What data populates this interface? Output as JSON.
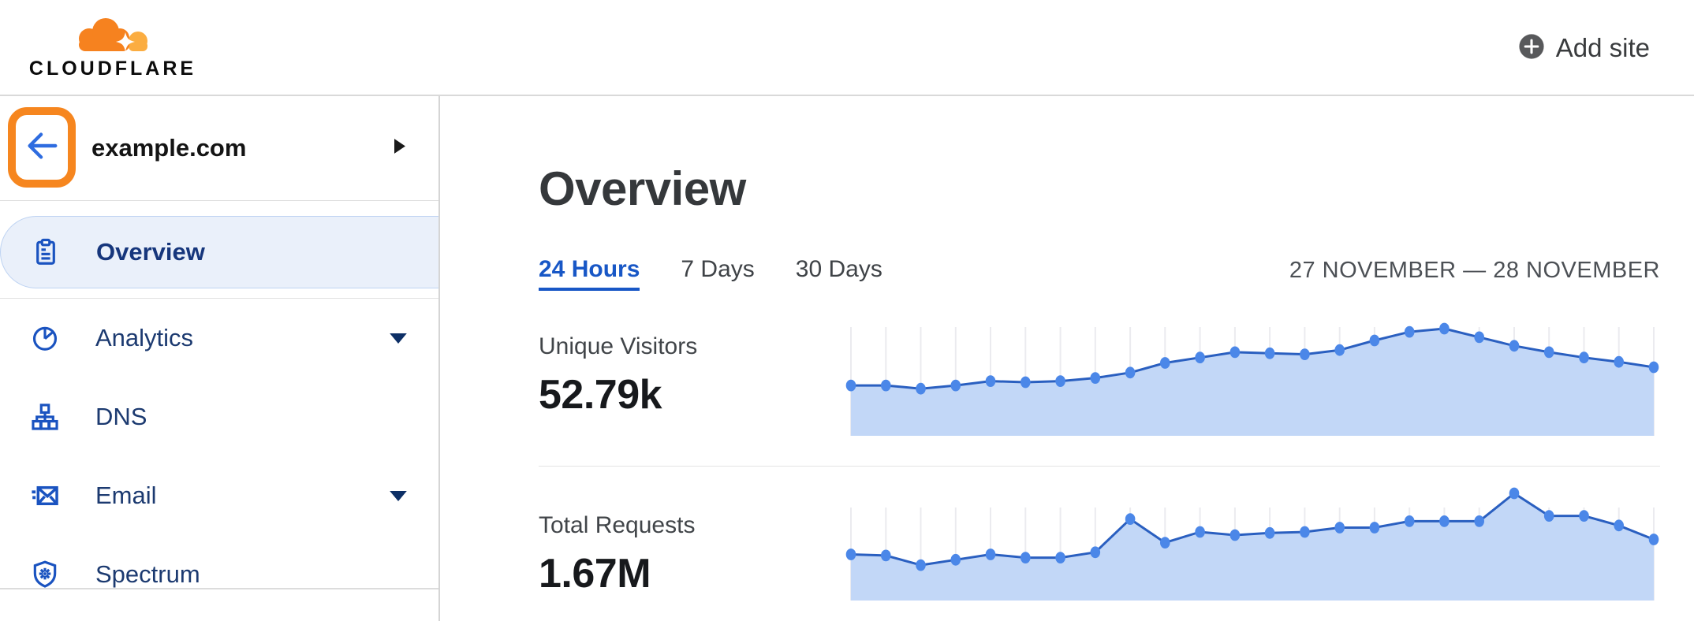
{
  "header": {
    "logo_text": "CLOUDFLARE",
    "add_site_label": "Add site"
  },
  "sidebar": {
    "site_name": "example.com",
    "items": [
      {
        "label": "Overview",
        "icon": "clipboard",
        "selected": true,
        "expandable": false
      },
      {
        "label": "Analytics",
        "icon": "pie-chart",
        "selected": false,
        "expandable": true
      },
      {
        "label": "DNS",
        "icon": "sitemap",
        "selected": false,
        "expandable": false
      },
      {
        "label": "Email",
        "icon": "envelope",
        "selected": false,
        "expandable": true
      },
      {
        "label": "Spectrum",
        "icon": "shield",
        "selected": false,
        "expandable": false
      }
    ]
  },
  "main": {
    "title": "Overview",
    "tabs": [
      {
        "label": "24 Hours",
        "active": true
      },
      {
        "label": "7 Days",
        "active": false
      },
      {
        "label": "30 Days",
        "active": false
      }
    ],
    "date_range": "27 NOVEMBER — 28 NOVEMBER"
  },
  "chart_data": [
    {
      "type": "area",
      "title": "Unique Visitors",
      "total": "52.79k",
      "x": "24 hourly points, 27 Nov – 28 Nov (no axis labels shown)",
      "ylabel": "relative value (y-axis unlabeled, peak = 100)",
      "values": [
        47,
        47,
        44,
        47,
        51,
        50,
        51,
        54,
        59,
        68,
        73,
        78,
        77,
        76,
        80,
        89,
        97,
        100,
        92,
        84,
        78,
        73,
        69,
        64
      ],
      "grid": "vertical gridlines at each point",
      "legend": "none"
    },
    {
      "type": "area",
      "title": "Total Requests",
      "total": "1.67M",
      "x": "24 hourly points, 27 Nov – 28 Nov (no axis labels shown)",
      "ylabel": "relative value (y-axis unlabeled, peak = 100)",
      "values": [
        43,
        42,
        33,
        38,
        43,
        40,
        40,
        45,
        76,
        54,
        64,
        61,
        63,
        64,
        68,
        68,
        74,
        74,
        74,
        100,
        79,
        79,
        70,
        57
      ],
      "grid": "vertical gridlines at each point",
      "legend": "none"
    }
  ],
  "colors": {
    "accent_orange": "#F6821F",
    "logo_orange_light": "#FBAD41",
    "active_tab_blue": "#1857C6",
    "sidebar_icon_blue": "#1A53C0",
    "back_arrow_blue": "#2E6CE0",
    "chart_line": "#2A5FC0",
    "chart_marker": "#4B87E8",
    "chart_fill": "#C2D7F7",
    "gridline": "#EBEBEF",
    "selected_item_bg": "#EAF0FA"
  }
}
